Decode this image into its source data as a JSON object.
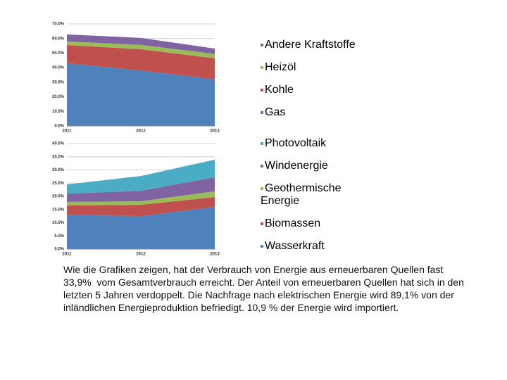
{
  "chart_data": [
    {
      "type": "stacked-area",
      "categories": [
        "2011",
        "2012",
        "2013"
      ],
      "ylim": [
        0,
        70
      ],
      "yticks": [
        {
          "value": 0,
          "label": "0.0%"
        },
        {
          "value": 10,
          "label": "10.0%"
        },
        {
          "value": 20,
          "label": "20.0%"
        },
        {
          "value": 30,
          "label": "30.0%"
        },
        {
          "value": 40,
          "label": "40.0%"
        },
        {
          "value": 50,
          "label": "50.0%"
        },
        {
          "value": 60,
          "label": "60.0%"
        },
        {
          "value": 70,
          "label": "70.0%"
        }
      ],
      "grid": true,
      "series": [
        {
          "name": "Andere Kraftstoffe",
          "color": "#8064a2",
          "values": [
            4.8,
            4.8,
            3.7
          ]
        },
        {
          "name": "Heizöl",
          "color": "#9bbb59",
          "values": [
            2.5,
            3,
            3
          ]
        },
        {
          "name": "Kohle",
          "color": "#c0504d",
          "values": [
            12.5,
            14.6,
            14.4
          ]
        },
        {
          "name": "Gas",
          "color": "#4f81bd",
          "values": [
            43,
            38,
            32
          ]
        }
      ]
    },
    {
      "type": "stacked-area",
      "categories": [
        "2011",
        "2012",
        "2013"
      ],
      "ylim": [
        0,
        40
      ],
      "yticks": [
        {
          "value": 0,
          "label": "0.0%"
        },
        {
          "value": 5,
          "label": "5.0%"
        },
        {
          "value": 10,
          "label": "10.0%"
        },
        {
          "value": 15,
          "label": "15.0%"
        },
        {
          "value": 20,
          "label": "20.0%"
        },
        {
          "value": 25,
          "label": "25.0%"
        },
        {
          "value": 30,
          "label": "30.0%"
        },
        {
          "value": 35,
          "label": "35.0%"
        },
        {
          "value": 40,
          "label": "40.0%"
        }
      ],
      "grid": true,
      "series": [
        {
          "name": "Photovoltaik",
          "color": "#4bacc6",
          "values": [
            3.5,
            5.6,
            6.7
          ]
        },
        {
          "name": "Windenergie",
          "color": "#8064a2",
          "values": [
            3.1,
            4,
            5.3
          ]
        },
        {
          "name": "Geothermische Energie",
          "color": "#9bbb59",
          "values": [
            1.4,
            1.3,
            2.2
          ]
        },
        {
          "name": "Biomassen",
          "color": "#c0504d",
          "values": [
            3.5,
            4.3,
            3.7
          ]
        },
        {
          "name": "Wasserkraft",
          "color": "#4f81bd",
          "values": [
            13,
            12.5,
            16
          ]
        }
      ]
    }
  ],
  "paragraph": "Wie die Grafiken zeigen, hat der Verbrauch von Energie aus erneuerbaren Quellen fast 33,9%  vom Gesamtverbrauch erreicht. Der Anteil von erneuerbaren Quellen hat sich in den letzten 5 Jahren verdoppelt. Die Nachfrage nach elektrischen Energie wird 89,1% von der inländlichen Energieproduktion befriedigt. 10,9 % der Energie wird importiert."
}
